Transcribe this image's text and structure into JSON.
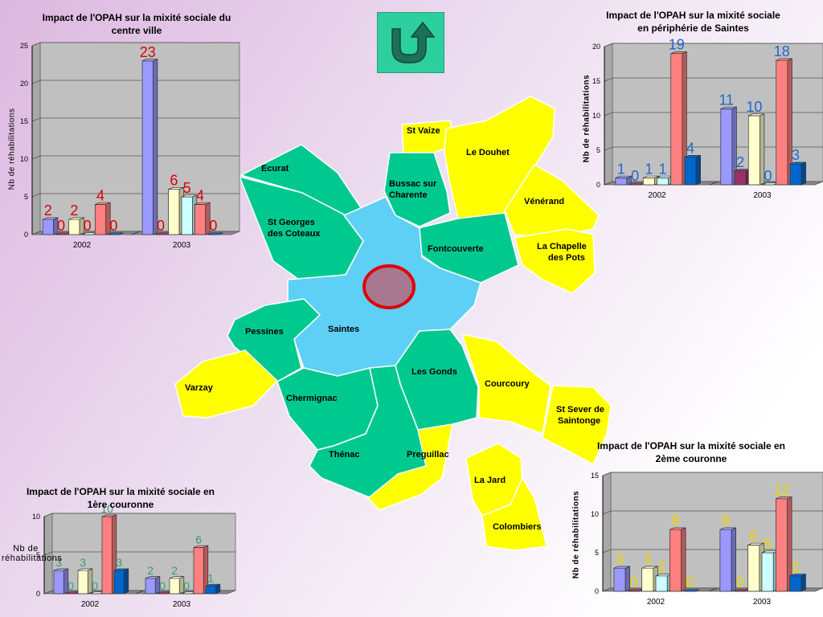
{
  "palette": {
    "ville": "#5fd0f5",
    "couronne1": "#00c98f",
    "couronne2": "#ffff00",
    "label_red": "#dd0000",
    "label_blue": "#2266cc",
    "label_green": "#33a070",
    "label_yellow": "#e8d800",
    "series_colors": [
      "#9999ff",
      "#993366",
      "#ffffcc",
      "#ccffff",
      "#ff8080",
      "#0066cc"
    ]
  },
  "nav": {
    "home_icon": "return-arrow-icon"
  },
  "map": {
    "regions": [
      {
        "id": "st-vaize",
        "label": "St Vaize",
        "zone": "couronne2"
      },
      {
        "id": "le-douhet",
        "label": "Le Douhet",
        "zone": "couronne2"
      },
      {
        "id": "venerand",
        "label": "Vénérand",
        "zone": "couronne2"
      },
      {
        "id": "la-chapelle",
        "label": "La Chapelle des Pots",
        "zone": "couronne2"
      },
      {
        "id": "ecurat",
        "label": "Ecurat",
        "zone": "couronne1"
      },
      {
        "id": "bussac",
        "label": "Bussac sur Charente",
        "zone": "couronne1"
      },
      {
        "id": "st-georges",
        "label": "St Georges des Coteaux",
        "zone": "couronne1"
      },
      {
        "id": "fontcouverte",
        "label": "Fontcouverte",
        "zone": "couronne1"
      },
      {
        "id": "saintes",
        "label": "Saintes",
        "zone": "ville"
      },
      {
        "id": "pessines",
        "label": "Pessines",
        "zone": "couronne1"
      },
      {
        "id": "varzay",
        "label": "Varzay",
        "zone": "couronne2"
      },
      {
        "id": "les-gonds",
        "label": "Les Gonds",
        "zone": "couronne1"
      },
      {
        "id": "courcoury",
        "label": "Courcoury",
        "zone": "couronne2"
      },
      {
        "id": "st-sever",
        "label": "St Sever de Saintonge",
        "zone": "couronne2"
      },
      {
        "id": "chermignac",
        "label": "Chermignac",
        "zone": "couronne1"
      },
      {
        "id": "thenac",
        "label": "Thénac",
        "zone": "couronne1"
      },
      {
        "id": "preguillac",
        "label": "Preguillac",
        "zone": "couronne2"
      },
      {
        "id": "la-jard",
        "label": "La Jard",
        "zone": "couronne2"
      },
      {
        "id": "colombiers",
        "label": "Colombiers",
        "zone": "couronne2"
      }
    ]
  },
  "chart_data": [
    {
      "id": "centre",
      "type": "bar",
      "title": "Impact de l'OPAH sur la mixité sociale du centre ville",
      "ylabel": "Nb de réhabilitations",
      "categories": [
        "2002",
        "2003"
      ],
      "ylim": [
        0,
        25
      ],
      "yticks": [
        0,
        5,
        10,
        15,
        20,
        25
      ],
      "grid": true,
      "label_color": "#dd0000",
      "series": [
        {
          "values": [
            2,
            23
          ]
        },
        {
          "values": [
            0,
            0
          ]
        },
        {
          "values": [
            2,
            6
          ]
        },
        {
          "values": [
            0,
            5
          ]
        },
        {
          "values": [
            4,
            4
          ]
        },
        {
          "values": [
            0,
            0
          ]
        }
      ]
    },
    {
      "id": "peripherie",
      "type": "bar",
      "title": "Impact de l'OPAH sur la mixité sociale en périphérie de Saintes",
      "ylabel": "Nb de réhabilitations",
      "categories": [
        "2002",
        "2003"
      ],
      "ylim": [
        0,
        20
      ],
      "yticks": [
        0,
        5,
        10,
        15,
        20
      ],
      "grid": true,
      "label_color": "#2266cc",
      "series": [
        {
          "values": [
            1,
            11
          ]
        },
        {
          "values": [
            0,
            2
          ]
        },
        {
          "values": [
            1,
            10
          ]
        },
        {
          "values": [
            1,
            0
          ]
        },
        {
          "values": [
            19,
            18
          ]
        },
        {
          "values": [
            4,
            3
          ]
        }
      ]
    },
    {
      "id": "couronne1",
      "type": "bar",
      "title": "Impact de l'OPAH sur la mixité sociale en 1ère couronne",
      "ylabel": "Nb de réhabilitations",
      "categories": [
        "2002",
        "2003"
      ],
      "ylim": [
        0,
        10
      ],
      "yticks": [
        0,
        5,
        10
      ],
      "grid": true,
      "label_color": "#33a070",
      "series": [
        {
          "values": [
            3,
            2
          ]
        },
        {
          "values": [
            0,
            0
          ]
        },
        {
          "values": [
            3,
            2
          ]
        },
        {
          "values": [
            0,
            0
          ]
        },
        {
          "values": [
            10,
            6
          ]
        },
        {
          "values": [
            3,
            1
          ]
        }
      ]
    },
    {
      "id": "couronne2",
      "type": "bar",
      "title": "Impact de l'OPAH sur la mixité sociale en 2ème couronne",
      "ylabel": "Nb de réhabilitations",
      "categories": [
        "2002",
        "2003"
      ],
      "ylim": [
        0,
        15
      ],
      "yticks": [
        0,
        5,
        10,
        15
      ],
      "grid": true,
      "label_color": "#e8d800",
      "series": [
        {
          "values": [
            3,
            8
          ]
        },
        {
          "values": [
            0,
            0
          ]
        },
        {
          "values": [
            3,
            6
          ]
        },
        {
          "values": [
            2,
            5
          ]
        },
        {
          "values": [
            8,
            12
          ]
        },
        {
          "values": [
            0,
            2
          ]
        }
      ]
    }
  ]
}
